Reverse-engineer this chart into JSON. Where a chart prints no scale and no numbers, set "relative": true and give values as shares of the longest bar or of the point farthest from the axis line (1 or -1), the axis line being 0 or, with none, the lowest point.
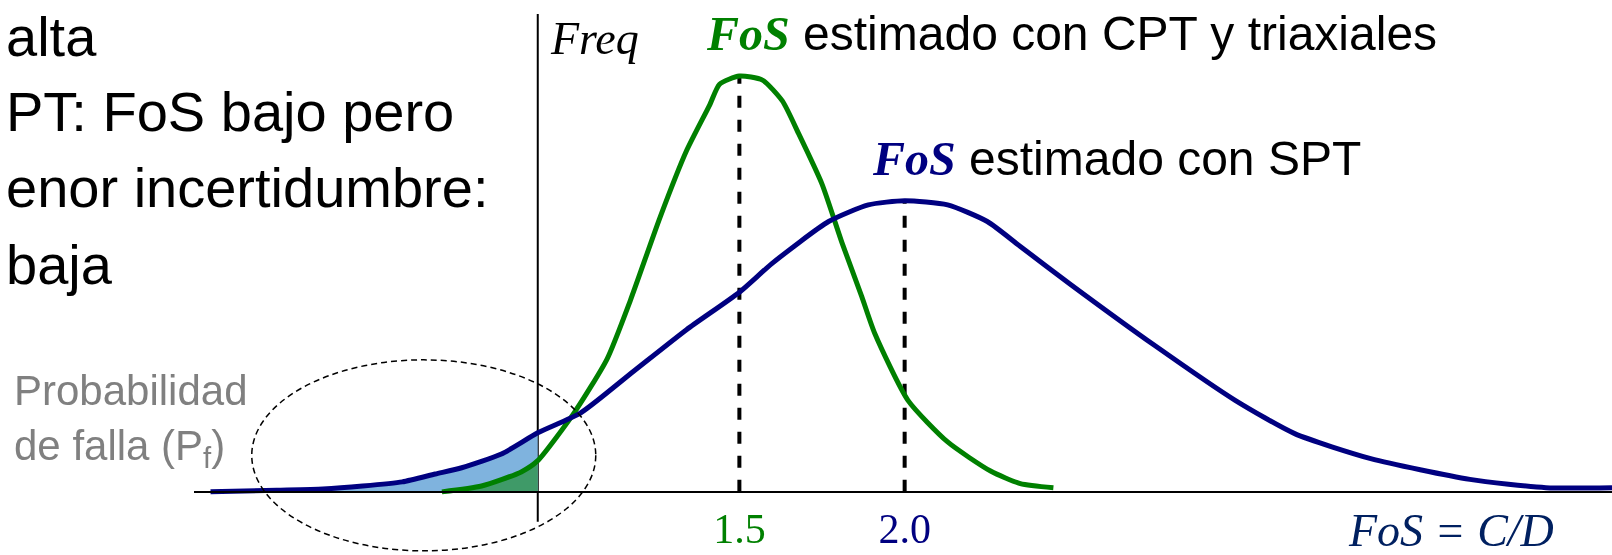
{
  "chart_data": {
    "type": "line",
    "relative": true,
    "xlabel": "FoS = C/D",
    "ylabel": "Freq",
    "xlim": [
      -0.15,
      4.14
    ],
    "xticks": [
      1.5,
      {
        "value": 2,
        "label": "2.0"
      }
    ],
    "tick_labels": "x",
    "series": [
      {
        "type": "area",
        "color": "#7fb3de",
        "x": [
          -0.1,
          0.1,
          0.24,
          0.36,
          0.48,
          0.58,
          0.66,
          0.78,
          0.89
        ],
        "values": [
          0,
          0.004,
          0.007,
          0.014,
          0.024,
          0.043,
          0.058,
          0.091,
          0.142
        ]
      },
      {
        "type": "area",
        "color": "#3f9a68",
        "x": [
          0.6,
          0.72,
          0.84,
          0.89
        ],
        "values": [
          0,
          0.014,
          0.048,
          0.075
        ]
      },
      {
        "name": "FoS estimado con CPT y triaxiales",
        "color": "#008000",
        "x": [
          0.6,
          0.72,
          0.84,
          0.89,
          1.0,
          1.1,
          1.17,
          1.26,
          1.34,
          1.41,
          1.44,
          1.5,
          1.57,
          1.63,
          1.68,
          1.75,
          1.81,
          1.87,
          1.91,
          2.01,
          2.13,
          2.26,
          2.35,
          2.45
        ],
        "values": [
          0,
          0.014,
          0.048,
          0.075,
          0.19,
          0.32,
          0.46,
          0.66,
          0.82,
          0.93,
          0.98,
          1.0,
          0.99,
          0.94,
          0.86,
          0.74,
          0.6,
          0.47,
          0.38,
          0.22,
          0.12,
          0.05,
          0.02,
          0.01
        ]
      },
      {
        "name": "FoS estimado con SPT",
        "color": "#000080",
        "x": [
          -0.1,
          0.1,
          0.24,
          0.36,
          0.48,
          0.58,
          0.66,
          0.78,
          0.89,
          1.02,
          1.18,
          1.34,
          1.5,
          1.6,
          1.77,
          1.89,
          2.0,
          2.13,
          2.25,
          2.35,
          2.5,
          2.76,
          3.0,
          3.18,
          3.41,
          3.71,
          3.94,
          4.14
        ],
        "values": [
          0,
          0.004,
          0.007,
          0.014,
          0.024,
          0.043,
          0.058,
          0.091,
          0.142,
          0.19,
          0.29,
          0.39,
          0.48,
          0.55,
          0.65,
          0.69,
          0.7,
          0.69,
          0.65,
          0.59,
          0.5,
          0.35,
          0.22,
          0.14,
          0.08,
          0.03,
          0.01,
          0.01
        ]
      }
    ],
    "ref_lines": [
      {
        "axis": "x",
        "value": 0.89,
        "color": "#000000"
      },
      {
        "axis": "x",
        "value": 1.5,
        "color": "#000000",
        "line_style": "dashed"
      },
      {
        "axis": "x",
        "value": 2,
        "color": "#000000",
        "line_style": "dashed"
      }
    ],
    "annotations": [
      "alta",
      "PT: FoS bajo pero",
      "enor incertidumbre:",
      "baja",
      "Probabilidad de falla (P$_{f}$)"
    ]
  }
}
